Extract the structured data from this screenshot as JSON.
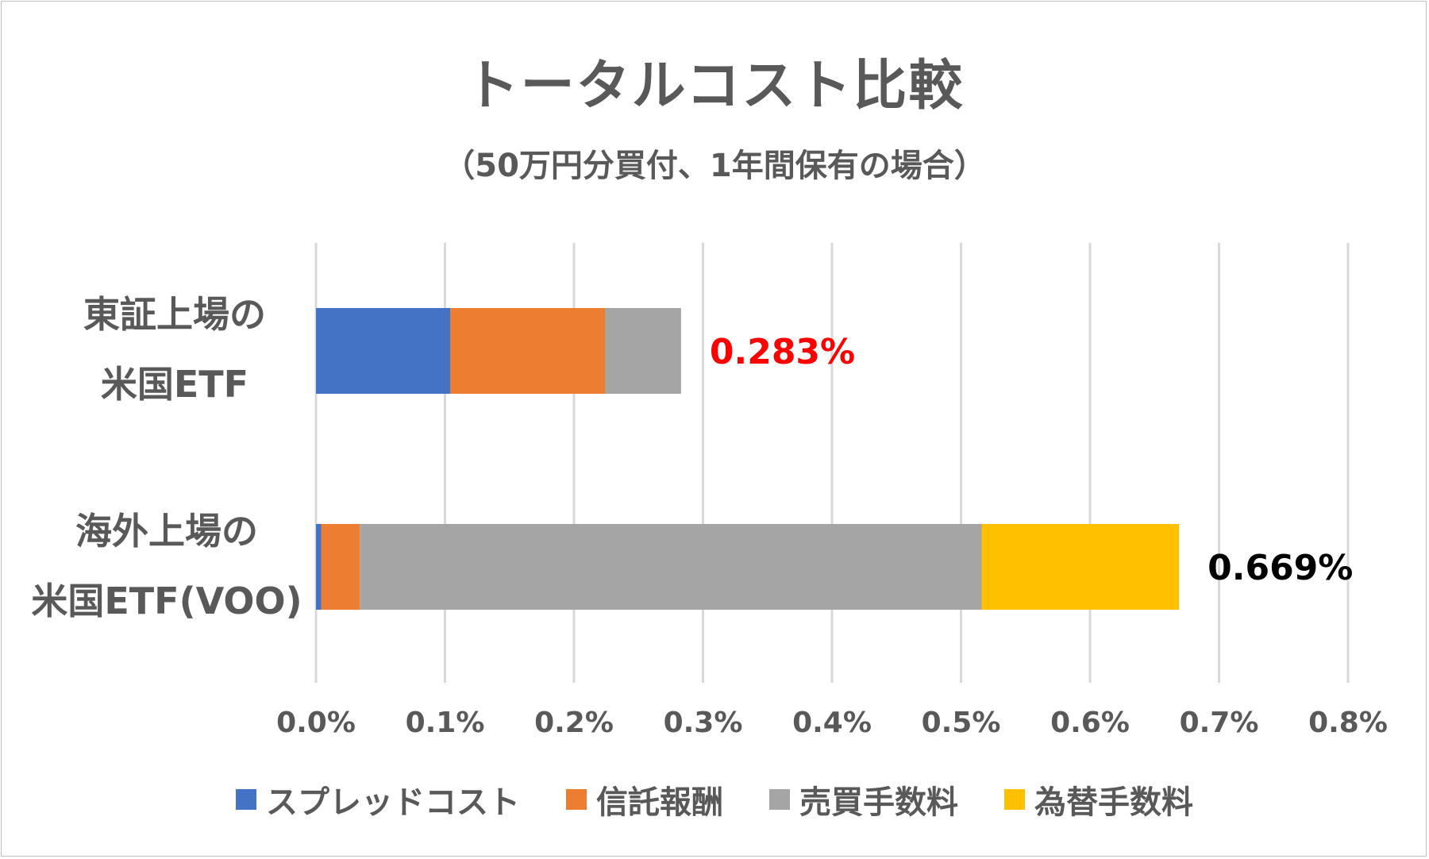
{
  "chart_data": {
    "type": "bar",
    "orientation": "horizontal",
    "stacked": true,
    "title": "トータルコスト比較",
    "subtitle": "（50万円分買付、1年間保有の場合）",
    "categories": [
      [
        "東証上場の",
        "米国ETF"
      ],
      [
        "海外上場の",
        "米国ETF(VOO)"
      ]
    ],
    "series": [
      {
        "name": "スプレッドコスト",
        "color": "#4472C4",
        "values": [
          0.104,
          0.004
        ]
      },
      {
        "name": "信託報酬",
        "color": "#ED7D31",
        "values": [
          0.12,
          0.03
        ]
      },
      {
        "name": "売買手数料",
        "color": "#A5A5A5",
        "values": [
          0.059,
          0.482
        ]
      },
      {
        "name": "為替手数料",
        "color": "#FFC000",
        "values": [
          0.0,
          0.153
        ]
      }
    ],
    "totals": [
      {
        "label": "0.283%",
        "value": 0.283,
        "color": "#FF0000"
      },
      {
        "label": "0.669%",
        "value": 0.669,
        "color": "#000000"
      }
    ],
    "xlim": [
      0,
      0.8
    ],
    "xticks": [
      0.0,
      0.1,
      0.2,
      0.3,
      0.4,
      0.5,
      0.6,
      0.7,
      0.8
    ],
    "xtick_labels": [
      "0.0%",
      "0.1%",
      "0.2%",
      "0.3%",
      "0.4%",
      "0.5%",
      "0.6%",
      "0.7%",
      "0.8%"
    ],
    "grid": true,
    "gridline_color": "#D9D9D9",
    "legend_position": "bottom"
  }
}
